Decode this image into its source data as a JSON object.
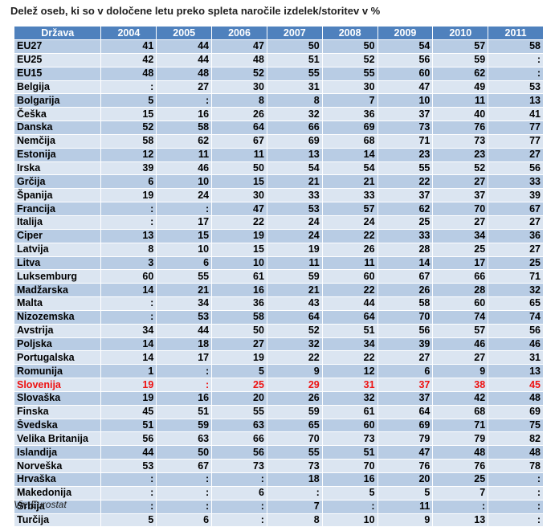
{
  "title": "Delež oseb, ki so v določene letu preko spleta naročile izdelek/storitev v %",
  "source": "Vir: Eurostat",
  "highlight_color": "#ee1111",
  "header": [
    "Država",
    "2004",
    "2005",
    "2006",
    "2007",
    "2008",
    "2009",
    "2010",
    "2011"
  ],
  "rows": [
    {
      "name": "EU27",
      "values": [
        "41",
        "44",
        "47",
        "50",
        "50",
        "54",
        "57",
        "58"
      ]
    },
    {
      "name": "EU25",
      "values": [
        "42",
        "44",
        "48",
        "51",
        "52",
        "56",
        "59",
        ":"
      ]
    },
    {
      "name": "EU15",
      "values": [
        "48",
        "48",
        "52",
        "55",
        "55",
        "60",
        "62",
        ":"
      ]
    },
    {
      "name": "Belgija",
      "values": [
        ":",
        "27",
        "30",
        "31",
        "30",
        "47",
        "49",
        "53"
      ]
    },
    {
      "name": "Bolgarija",
      "values": [
        "5",
        ":",
        "8",
        "8",
        "7",
        "10",
        "11",
        "13"
      ]
    },
    {
      "name": "Češka",
      "values": [
        "15",
        "16",
        "26",
        "32",
        "36",
        "37",
        "40",
        "41"
      ]
    },
    {
      "name": "Danska",
      "values": [
        "52",
        "58",
        "64",
        "66",
        "69",
        "73",
        "76",
        "77"
      ]
    },
    {
      "name": "Nemčija",
      "values": [
        "58",
        "62",
        "67",
        "69",
        "68",
        "71",
        "73",
        "77"
      ]
    },
    {
      "name": "Estonija",
      "values": [
        "12",
        "11",
        "11",
        "13",
        "14",
        "23",
        "23",
        "27"
      ]
    },
    {
      "name": "Irska",
      "values": [
        "39",
        "46",
        "50",
        "54",
        "54",
        "55",
        "52",
        "56"
      ]
    },
    {
      "name": "Grčija",
      "values": [
        "6",
        "10",
        "15",
        "21",
        "21",
        "22",
        "27",
        "33"
      ]
    },
    {
      "name": "Španija",
      "values": [
        "19",
        "24",
        "30",
        "33",
        "33",
        "37",
        "37",
        "39"
      ]
    },
    {
      "name": "Francija",
      "values": [
        ":",
        ":",
        "47",
        "53",
        "57",
        "62",
        "70",
        "67"
      ]
    },
    {
      "name": "Italija",
      "values": [
        ":",
        "17",
        "22",
        "24",
        "24",
        "25",
        "27",
        "27"
      ]
    },
    {
      "name": "Ciper",
      "values": [
        "13",
        "15",
        "19",
        "24",
        "22",
        "33",
        "34",
        "36"
      ]
    },
    {
      "name": "Latvija",
      "values": [
        "8",
        "10",
        "15",
        "19",
        "26",
        "28",
        "25",
        "27"
      ]
    },
    {
      "name": "Litva",
      "values": [
        "3",
        "6",
        "10",
        "11",
        "11",
        "14",
        "17",
        "25"
      ]
    },
    {
      "name": "Luksemburg",
      "values": [
        "60",
        "55",
        "61",
        "59",
        "60",
        "67",
        "66",
        "71"
      ]
    },
    {
      "name": "Madžarska",
      "values": [
        "14",
        "21",
        "16",
        "21",
        "22",
        "26",
        "28",
        "32"
      ]
    },
    {
      "name": "Malta",
      "values": [
        ":",
        "34",
        "36",
        "43",
        "44",
        "58",
        "60",
        "65"
      ]
    },
    {
      "name": "Nizozemska",
      "values": [
        ":",
        "53",
        "58",
        "64",
        "64",
        "70",
        "74",
        "74"
      ]
    },
    {
      "name": "Avstrija",
      "values": [
        "34",
        "44",
        "50",
        "52",
        "51",
        "56",
        "57",
        "56"
      ]
    },
    {
      "name": "Poljska",
      "values": [
        "14",
        "18",
        "27",
        "32",
        "34",
        "39",
        "46",
        "46"
      ]
    },
    {
      "name": "Portugalska",
      "values": [
        "14",
        "17",
        "19",
        "22",
        "22",
        "27",
        "27",
        "31"
      ]
    },
    {
      "name": "Romunija",
      "values": [
        "1",
        ":",
        "5",
        "9",
        "12",
        "6",
        "9",
        "13"
      ]
    },
    {
      "name": "Slovenija",
      "values": [
        "19",
        ":",
        "25",
        "29",
        "31",
        "37",
        "38",
        "45"
      ],
      "highlight": true
    },
    {
      "name": "Slovaška",
      "values": [
        "19",
        "16",
        "20",
        "26",
        "32",
        "37",
        "42",
        "48"
      ]
    },
    {
      "name": "Finska",
      "values": [
        "45",
        "51",
        "55",
        "59",
        "61",
        "64",
        "68",
        "69"
      ]
    },
    {
      "name": "Švedska",
      "values": [
        "51",
        "59",
        "63",
        "65",
        "60",
        "69",
        "71",
        "75"
      ]
    },
    {
      "name": "Velika Britanija",
      "values": [
        "56",
        "63",
        "66",
        "70",
        "73",
        "79",
        "79",
        "82"
      ]
    },
    {
      "name": "Islandija",
      "values": [
        "44",
        "50",
        "56",
        "55",
        "51",
        "47",
        "48",
        "48"
      ]
    },
    {
      "name": "Norveška",
      "values": [
        "53",
        "67",
        "73",
        "73",
        "70",
        "76",
        "76",
        "78"
      ]
    },
    {
      "name": "Hrvaška",
      "values": [
        ":",
        ":",
        ":",
        "18",
        "16",
        "20",
        "25",
        ":"
      ]
    },
    {
      "name": "Makedonija",
      "values": [
        ":",
        ":",
        "6",
        ":",
        "5",
        "5",
        "7",
        ":"
      ]
    },
    {
      "name": "Srbija",
      "values": [
        ":",
        ":",
        ":",
        "7",
        ":",
        "11",
        ":",
        ":"
      ]
    },
    {
      "name": "Turčija",
      "values": [
        "5",
        "6",
        ":",
        "8",
        "10",
        "9",
        "13",
        ":"
      ]
    }
  ]
}
